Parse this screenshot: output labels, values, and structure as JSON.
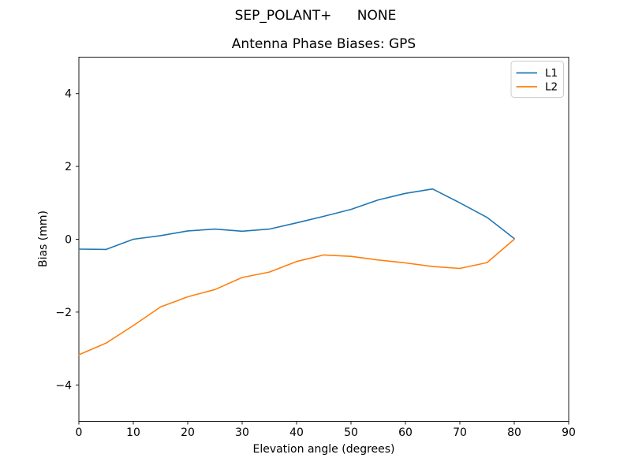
{
  "chart_data": {
    "type": "line",
    "suptitle": "SEP_POLANT+      NONE",
    "title": "Antenna Phase Biases: GPS",
    "xlabel": "Elevation angle (degrees)",
    "ylabel": "Bias (mm)",
    "xlim": [
      0,
      90
    ],
    "ylim": [
      -5,
      5
    ],
    "xticks": [
      0,
      10,
      20,
      30,
      40,
      50,
      60,
      70,
      80,
      90
    ],
    "yticks": [
      -4,
      -2,
      0,
      2,
      4
    ],
    "grid": false,
    "legend_position": "upper right",
    "legend": {
      "entries": [
        {
          "label": "L1",
          "color": "#1f77b4"
        },
        {
          "label": "L2",
          "color": "#ff7f0e"
        }
      ],
      "border_color": "#cccccc",
      "background_color": "#ffffff"
    },
    "axes": {
      "spine_color": "#000000",
      "background_color": "#ffffff"
    },
    "series": [
      {
        "name": "L1",
        "color": "#1f77b4",
        "points": [
          [
            0,
            -0.27
          ],
          [
            5,
            -0.28
          ],
          [
            10,
            0.0
          ],
          [
            15,
            0.1
          ],
          [
            20,
            0.23
          ],
          [
            25,
            0.28
          ],
          [
            30,
            0.22
          ],
          [
            35,
            0.28
          ],
          [
            40,
            0.45
          ],
          [
            45,
            0.63
          ],
          [
            50,
            0.82
          ],
          [
            55,
            1.08
          ],
          [
            60,
            1.26
          ],
          [
            65,
            1.38
          ],
          [
            70,
            1.0
          ],
          [
            75,
            0.6
          ],
          [
            80,
            0.02
          ]
        ]
      },
      {
        "name": "L2",
        "color": "#ff7f0e",
        "points": [
          [
            0,
            -3.17
          ],
          [
            5,
            -2.85
          ],
          [
            10,
            -2.37
          ],
          [
            15,
            -1.86
          ],
          [
            20,
            -1.58
          ],
          [
            25,
            -1.38
          ],
          [
            30,
            -1.05
          ],
          [
            35,
            -0.9
          ],
          [
            40,
            -0.61
          ],
          [
            45,
            -0.43
          ],
          [
            50,
            -0.47
          ],
          [
            55,
            -0.57
          ],
          [
            60,
            -0.65
          ],
          [
            65,
            -0.75
          ],
          [
            70,
            -0.8
          ],
          [
            75,
            -0.64
          ],
          [
            80,
            0.0
          ]
        ]
      }
    ]
  }
}
